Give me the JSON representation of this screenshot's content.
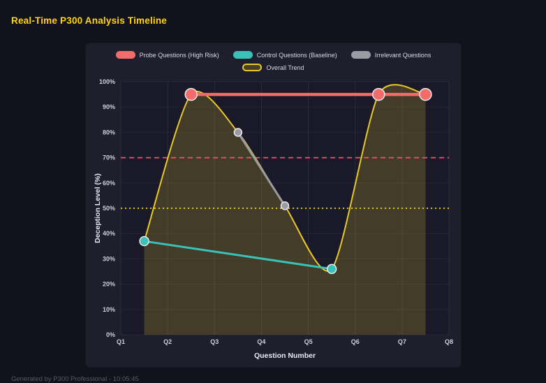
{
  "page": {
    "title": "Real-Time P300 Analysis Timeline",
    "footer": "Generated by P300 Professional - 10:05:45"
  },
  "colors": {
    "background": "#12121d",
    "panel": "#1e1e2d",
    "plot_background": "#191929",
    "title": "#ffd60a",
    "grid_vertical": "rgba(255,255,255,0.08)",
    "grid_horizontal": "rgba(255,255,255,0.05)",
    "marker_stroke": "#ebebf0"
  },
  "chart_data": {
    "type": "line",
    "title": "Real-Time P300 Analysis Timeline",
    "xlabel": "Question Number",
    "ylabel": "Deception Level (%)",
    "x_ticks": [
      "Q1",
      "Q2",
      "Q3",
      "Q4",
      "Q5",
      "Q6",
      "Q7",
      "Q8"
    ],
    "x_range": [
      1,
      8
    ],
    "y_ticks": [
      "0%",
      "10%",
      "20%",
      "30%",
      "40%",
      "50%",
      "60%",
      "70%",
      "80%",
      "90%",
      "100%"
    ],
    "y_tick_step": 10,
    "ylim": [
      0,
      100
    ],
    "grid": true,
    "legend_position": "top",
    "legend": [
      {
        "label": "Probe Questions (High Risk)",
        "color": "#f36c6c",
        "fill": "#f36c6c",
        "row": 1
      },
      {
        "label": "Control Questions (Baseline)",
        "color": "#3bc2b8",
        "fill": "#3bc2b8",
        "row": 1
      },
      {
        "label": "Irrelevant Questions",
        "color": "#9b9ba3",
        "fill": "#9b9ba3",
        "row": 1
      },
      {
        "label": "Overall Trend",
        "color": "#e8c927",
        "fill": "rgba(232,201,39,0.2)",
        "row": 2
      }
    ],
    "series": [
      {
        "name": "Overall Trend",
        "color": "#e8c927",
        "width": 2,
        "marker_radius": 0,
        "smooth": true,
        "fill": "rgba(232,201,39,0.2)",
        "points": [
          [
            1.5,
            37
          ],
          [
            2.5,
            95
          ],
          [
            3.5,
            80
          ],
          [
            4.5,
            51
          ],
          [
            5.5,
            26
          ],
          [
            6.5,
            95
          ],
          [
            7.5,
            95
          ]
        ]
      },
      {
        "name": "Irrelevant Questions",
        "color": "#9b9ba3",
        "width": 3,
        "marker_radius": 5.5,
        "smooth": false,
        "fill": null,
        "points": [
          [
            3.5,
            80
          ],
          [
            4.5,
            51
          ]
        ]
      },
      {
        "name": "Control Questions (Baseline)",
        "color": "#3bc2b8",
        "width": 3,
        "marker_radius": 6.5,
        "smooth": false,
        "fill": null,
        "points": [
          [
            1.5,
            37
          ],
          [
            5.5,
            26
          ]
        ]
      },
      {
        "name": "Probe Questions (High Risk)",
        "color": "#f36c6c",
        "width": 4.5,
        "marker_radius": 8.5,
        "smooth": false,
        "fill": null,
        "points": [
          [
            2.5,
            95
          ],
          [
            6.5,
            95
          ],
          [
            7.5,
            95
          ]
        ]
      }
    ],
    "thresholds": [
      {
        "value": 70,
        "color": "#ff4d6a",
        "dash": "7 5",
        "width": 1.8
      },
      {
        "value": 50,
        "color": "#ffd60a",
        "dash": "2 4",
        "width": 1.8
      }
    ]
  }
}
